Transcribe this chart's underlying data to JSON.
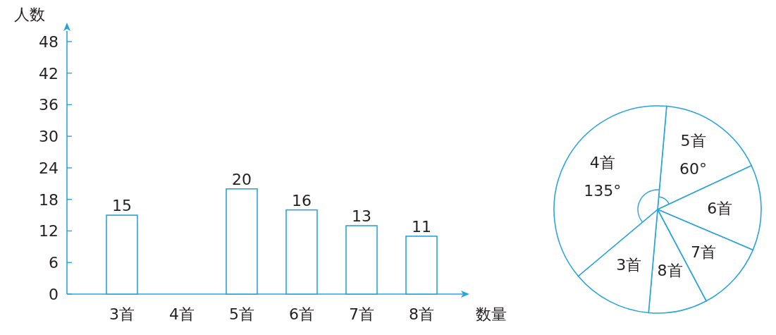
{
  "chart_data": [
    {
      "type": "bar",
      "xlabel": "数量",
      "ylabel": "人数",
      "categories": [
        "3首",
        "4首",
        "5首",
        "6首",
        "7首",
        "8首"
      ],
      "values": [
        15,
        null,
        20,
        16,
        13,
        11
      ],
      "color": "#2ba3dd",
      "ylim": [
        0,
        50
      ],
      "yticks": [
        0,
        6,
        12,
        18,
        24,
        30,
        36,
        42,
        48
      ],
      "data_labels": true
    },
    {
      "type": "pie",
      "categories": [
        "5首",
        "6首",
        "7首",
        "8首",
        "3首",
        "4首"
      ],
      "values": [
        60,
        48,
        39,
        33,
        45,
        135
      ],
      "colors": [
        "#2ba3dd",
        "#2ba3dd",
        "#2ba3dd",
        "#2ba3dd",
        "#2ba3dd",
        "#2ba3dd"
      ],
      "value_labels": [
        "60°",
        null,
        null,
        null,
        null,
        "135°"
      ]
    }
  ]
}
